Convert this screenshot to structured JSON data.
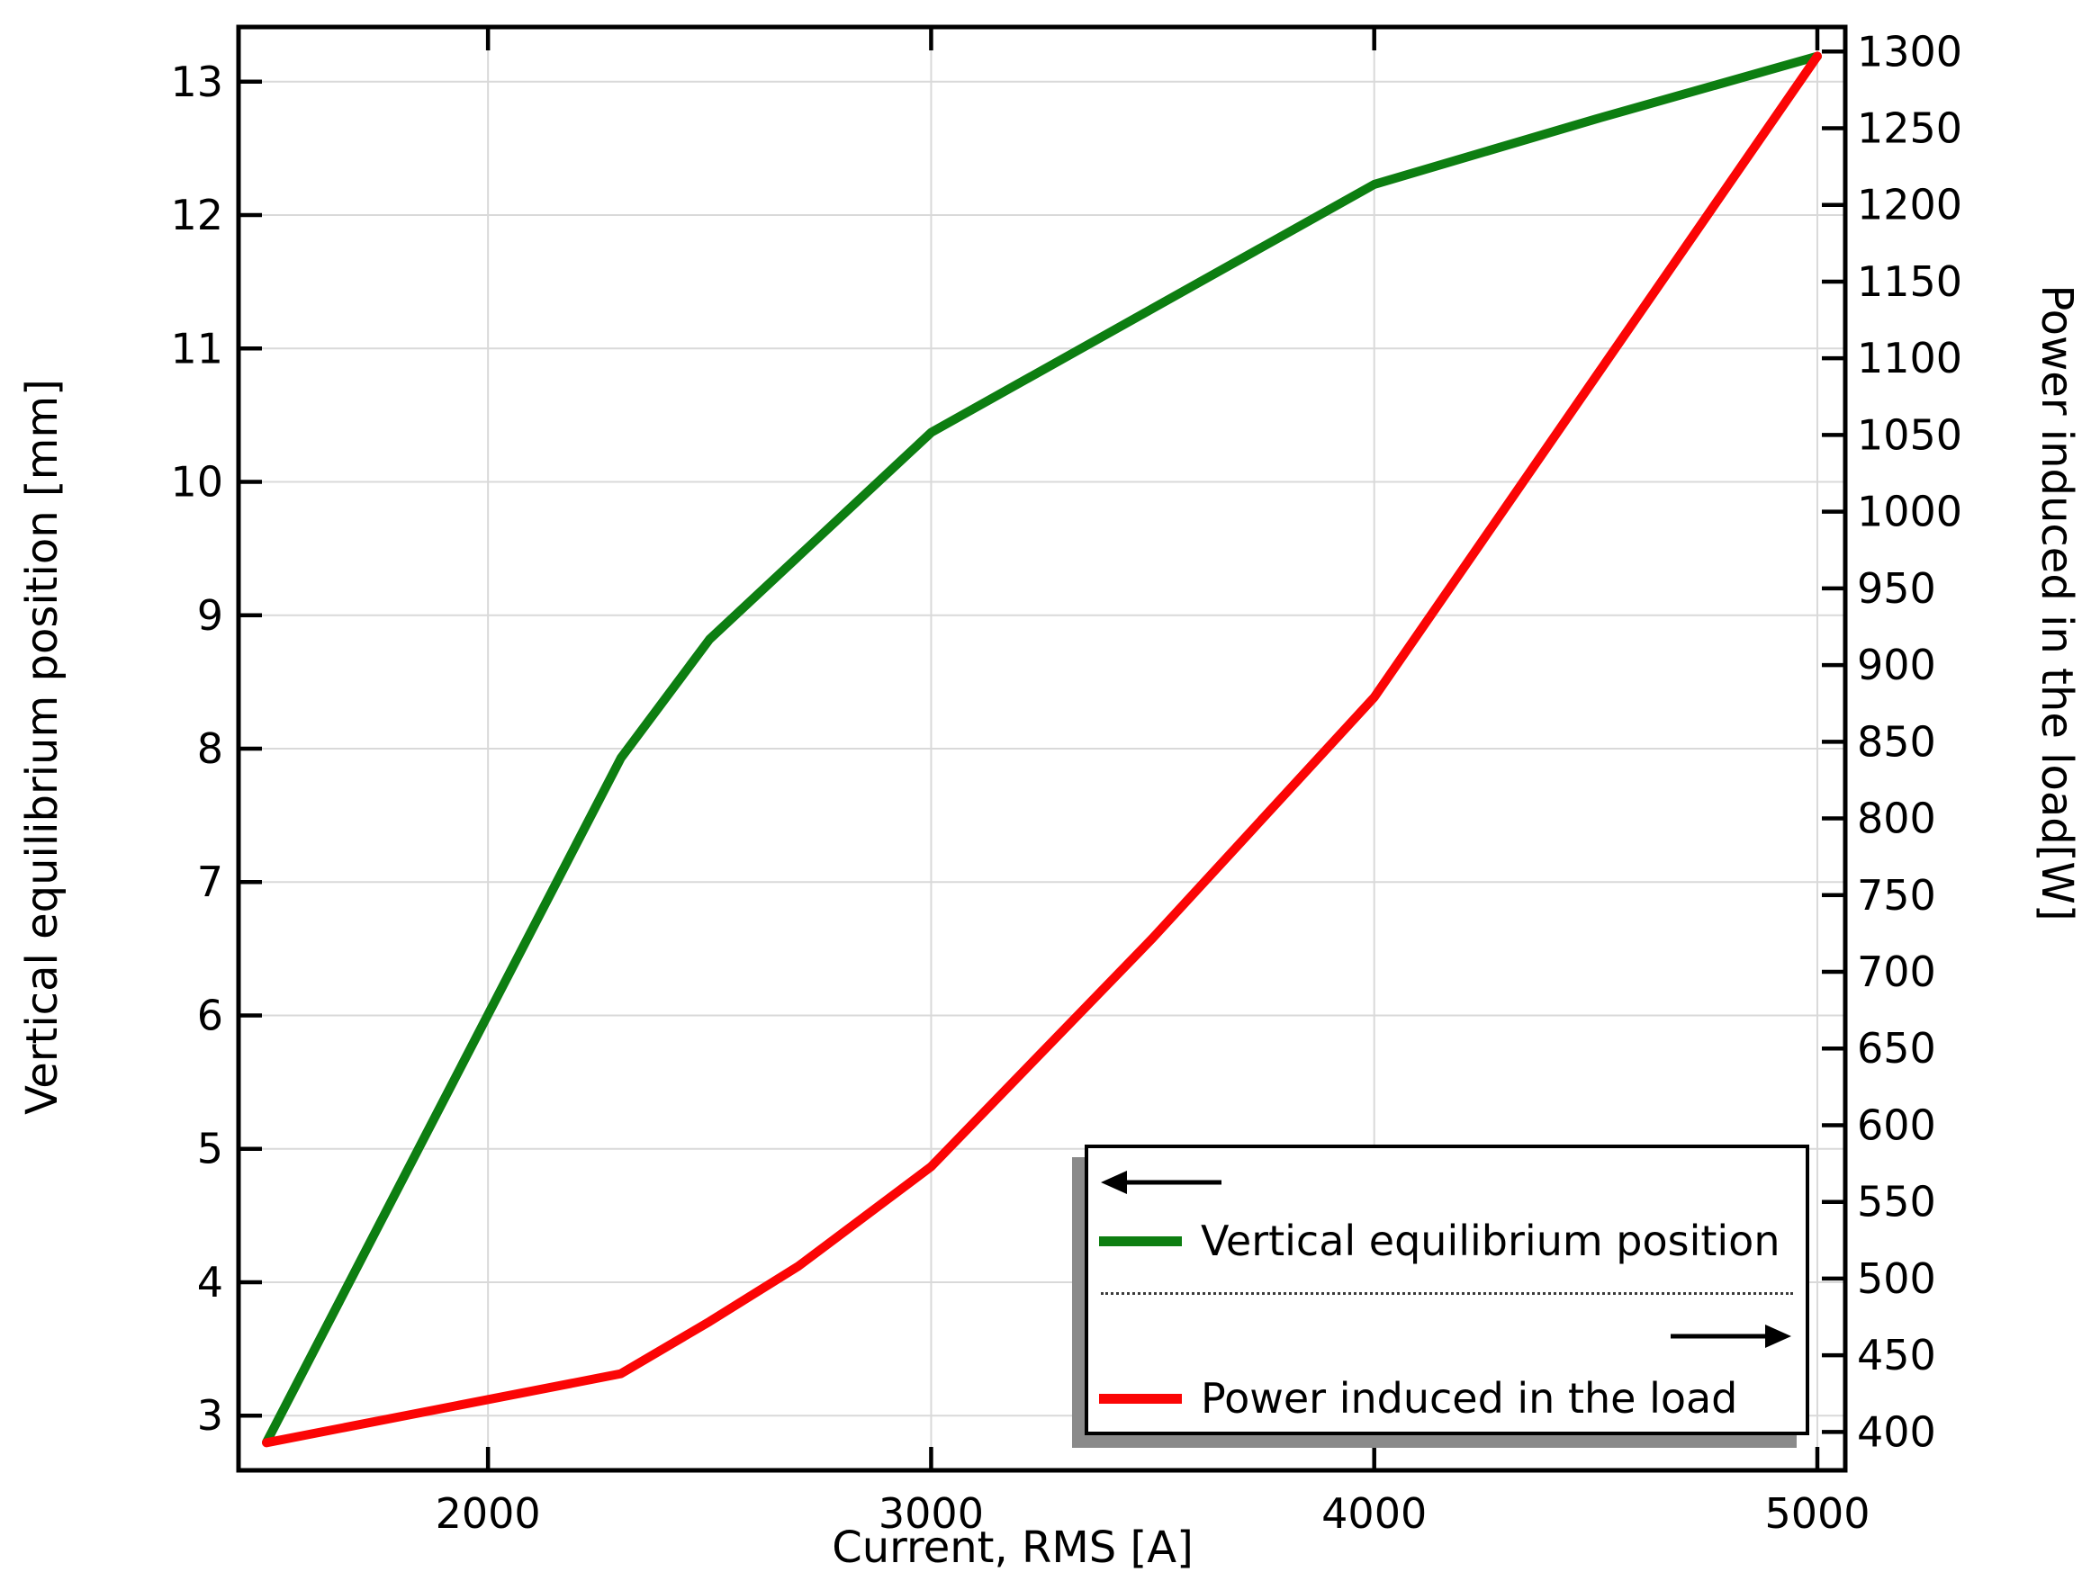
{
  "figure": {
    "background": "#ffffff",
    "axis_color": "#000000",
    "grid_color": "#d9d9d9",
    "shadow_color": "#8a8a8a"
  },
  "chart_data": {
    "type": "line",
    "title": "",
    "xlabel": "Current, RMS [A]",
    "ylabel_left": "Vertical equilibrium position [mm]",
    "ylabel_right": "Power induced in the load[W]",
    "grid": true,
    "legend_position": "bottom-right-inside",
    "xlim": [
      1437,
      5063
    ],
    "ylim_left": [
      2.59,
      13.41
    ],
    "ylim_right": [
      375,
      1316
    ],
    "x_ticks": [
      2000,
      3000,
      4000,
      5000
    ],
    "y_ticks_left": [
      3,
      4,
      5,
      6,
      7,
      8,
      9,
      10,
      11,
      12,
      13
    ],
    "y_ticks_right": [
      400,
      450,
      500,
      550,
      600,
      650,
      700,
      750,
      800,
      850,
      900,
      950,
      1000,
      1050,
      1100,
      1150,
      1200,
      1250,
      1300
    ],
    "x": [
      1500,
      2300,
      2500,
      2700,
      3000,
      3500,
      4000,
      4500,
      5000
    ],
    "series": [
      {
        "name": "Vertical equilibrium position",
        "axis": "left",
        "color": "#0d7e11",
        "values": [
          2.8,
          7.93,
          8.82,
          9.44,
          10.37,
          11.3,
          12.23,
          12.72,
          13.19
        ]
      },
      {
        "name": "Power induced in the load",
        "axis": "right",
        "color": "#fb0505",
        "values": [
          393,
          438,
          472,
          508,
          573,
          722,
          879,
          1088,
          1297
        ]
      }
    ]
  }
}
